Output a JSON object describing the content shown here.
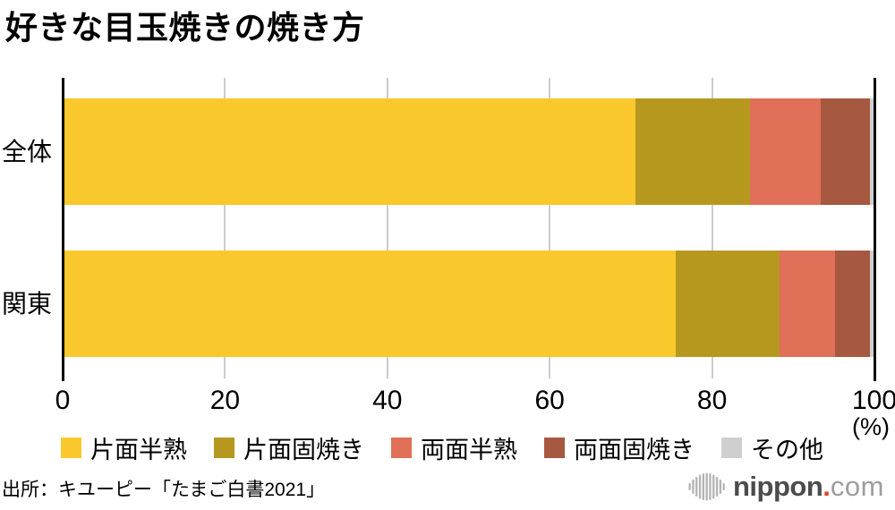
{
  "title": "好きな目玉焼きの焼き方",
  "chart_data": {
    "type": "bar",
    "orientation": "horizontal",
    "stacked": true,
    "categories": [
      "全体",
      "関東"
    ],
    "series": [
      {
        "name": "片面半熟",
        "color": "#f9c82c",
        "values": [
          70.5,
          75.5
        ]
      },
      {
        "name": "片面固焼き",
        "color": "#b7981e",
        "values": [
          14.2,
          12.8
        ]
      },
      {
        "name": "両面半熟",
        "color": "#e07057",
        "values": [
          8.7,
          6.8
        ]
      },
      {
        "name": "両面固焼き",
        "color": "#a65841",
        "values": [
          6.1,
          4.4
        ]
      },
      {
        "name": "その他",
        "color": "#cfcfcf",
        "values": [
          0.5,
          0.5
        ]
      }
    ],
    "x_axis": {
      "min": 0,
      "max": 100,
      "ticks": [
        0,
        20,
        40,
        60,
        80,
        100
      ],
      "unit_label": "(%)"
    },
    "grid": true,
    "legend_position": "bottom",
    "gridline_color": "#cccccc",
    "axis_color": "#0a0a0a"
  },
  "source": "出所：キユーピー「たまご白書2021」",
  "logo": {
    "name": "nippon",
    "dot": ".",
    "tld": "com",
    "text_color": "#4b4b4b",
    "dot_color": "#dc4627",
    "tld_color": "#9d9d9d",
    "icon_color": "#b3b3b3"
  }
}
